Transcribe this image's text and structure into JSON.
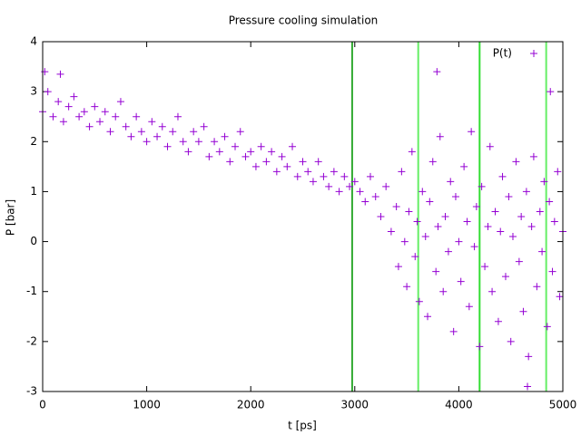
{
  "chart_data": {
    "type": "scatter",
    "title": "Pressure cooling simulation",
    "xlabel": "t [ps]",
    "ylabel": "P [bar]",
    "xlim": [
      0,
      5000
    ],
    "xticks": [
      0,
      1000,
      2000,
      3000,
      4000,
      5000
    ],
    "ylim": [
      -3,
      4
    ],
    "yticks": [
      -3,
      -2,
      -1,
      0,
      1,
      2,
      3,
      4
    ],
    "legend": "top right",
    "x": [
      0,
      20,
      50,
      100,
      150,
      170,
      200,
      250,
      300,
      350,
      400,
      450,
      500,
      550,
      600,
      650,
      700,
      750,
      800,
      850,
      900,
      950,
      1000,
      1050,
      1100,
      1150,
      1200,
      1250,
      1300,
      1350,
      1400,
      1450,
      1500,
      1550,
      1600,
      1650,
      1700,
      1750,
      1800,
      1850,
      1900,
      1950,
      2000,
      2050,
      2100,
      2150,
      2200,
      2250,
      2300,
      2350,
      2400,
      2450,
      2500,
      2550,
      2600,
      2650,
      2700,
      2750,
      2800,
      2850,
      2900,
      2950,
      3000,
      3050,
      3100,
      3150,
      3200,
      3250,
      3300,
      3350,
      3400,
      3420,
      3450,
      3480,
      3500,
      3520,
      3550,
      3580,
      3600,
      3620,
      3650,
      3680,
      3700,
      3720,
      3750,
      3780,
      3790,
      3800,
      3820,
      3850,
      3870,
      3900,
      3920,
      3950,
      3970,
      4000,
      4020,
      4050,
      4080,
      4100,
      4120,
      4150,
      4170,
      4200,
      4220,
      4250,
      4280,
      4300,
      4320,
      4350,
      4380,
      4400,
      4420,
      4450,
      4480,
      4500,
      4520,
      4550,
      4580,
      4600,
      4620,
      4650,
      4660,
      4670,
      4700,
      4720,
      4750,
      4780,
      4800,
      4820,
      4850,
      4870,
      4880,
      4900,
      4920,
      4950,
      4970,
      5000
    ],
    "series": [
      {
        "name": "P(t)",
        "color": "#9400d3",
        "values": [
          2.6,
          3.4,
          3.0,
          2.5,
          2.8,
          3.35,
          2.4,
          2.7,
          2.9,
          2.5,
          2.6,
          2.3,
          2.7,
          2.4,
          2.6,
          2.2,
          2.5,
          2.8,
          2.3,
          2.1,
          2.5,
          2.2,
          2.0,
          2.4,
          2.1,
          2.3,
          1.9,
          2.2,
          2.5,
          2.0,
          1.8,
          2.2,
          2.0,
          2.3,
          1.7,
          2.0,
          1.8,
          2.1,
          1.6,
          1.9,
          2.2,
          1.7,
          1.8,
          1.5,
          1.9,
          1.6,
          1.8,
          1.4,
          1.7,
          1.5,
          1.9,
          1.3,
          1.6,
          1.4,
          1.2,
          1.6,
          1.3,
          1.1,
          1.4,
          1.0,
          1.3,
          1.1,
          1.2,
          1.0,
          0.8,
          1.3,
          0.9,
          0.5,
          1.1,
          0.2,
          0.7,
          -0.5,
          1.4,
          0.0,
          -0.9,
          0.6,
          1.8,
          -0.3,
          0.4,
          -1.2,
          1.0,
          0.1,
          -1.5,
          0.8,
          1.6,
          -0.6,
          3.4,
          0.3,
          2.1,
          -1.0,
          0.5,
          -0.2,
          1.2,
          -1.8,
          0.9,
          0.0,
          -0.8,
          1.5,
          0.4,
          -1.3,
          2.2,
          -0.1,
          0.7,
          -2.1,
          1.1,
          -0.5,
          0.3,
          1.9,
          -1.0,
          0.6,
          -1.6,
          0.2,
          1.3,
          -0.7,
          0.9,
          -2.0,
          0.1,
          1.6,
          -0.4,
          0.5,
          -1.4,
          1.0,
          -2.9,
          -2.3,
          0.3,
          1.7,
          -0.9,
          0.6,
          -0.2,
          1.2,
          -1.7,
          0.8,
          3.0,
          -0.6,
          0.4,
          1.4,
          -1.1,
          0.2
        ]
      }
    ],
    "vlines": {
      "x": [
        2975,
        3610,
        4200,
        4840
      ],
      "colors": [
        "#33aa33",
        "#66ee66",
        "#33dd33",
        "#66ee66"
      ]
    }
  }
}
